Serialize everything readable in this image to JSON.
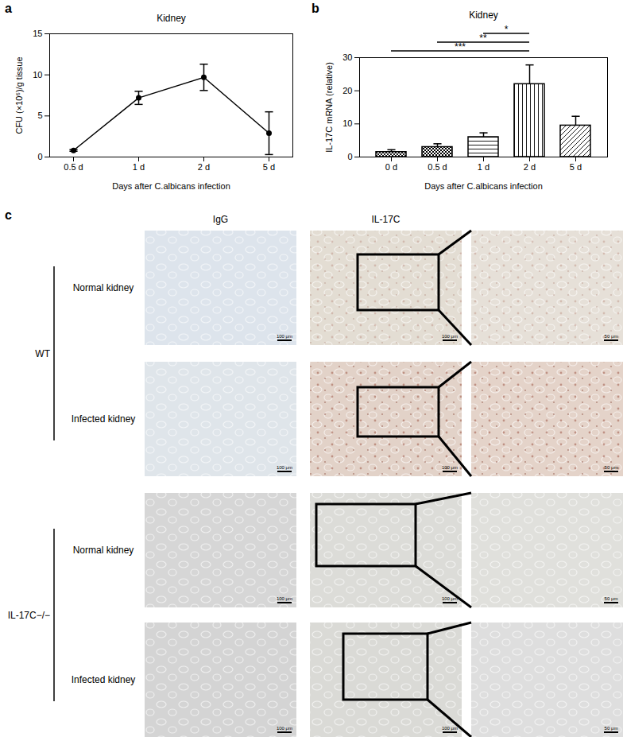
{
  "chart_data": [
    {
      "panel_label": "a",
      "type": "line",
      "title": "Kidney",
      "categories": [
        "0.5 d",
        "1 d",
        "2 d",
        "5 d"
      ],
      "values": [
        0.8,
        7.2,
        9.7,
        2.9
      ],
      "errors": [
        0.1,
        0.8,
        1.6,
        2.6
      ],
      "ylim": [
        0,
        15
      ],
      "yticks": [
        0,
        5,
        10,
        15
      ],
      "xlabel": "Days after C.albicans infection",
      "ylabel": "CFU (×10⁶)/g tissue",
      "color": "#000000",
      "marker": "circle"
    },
    {
      "panel_label": "b",
      "type": "bar",
      "title": "Kidney",
      "categories": [
        "0 d",
        "0.5 d",
        "1 d",
        "2 d",
        "5 d"
      ],
      "values": [
        1.5,
        3.0,
        6.0,
        22.0,
        9.5
      ],
      "errors": [
        0.7,
        1.0,
        1.3,
        5.8,
        2.8
      ],
      "ylim": [
        0,
        30
      ],
      "yticks": [
        0,
        10,
        20,
        30
      ],
      "xlabel": "Days after C.albicans infection",
      "ylabel": "IL-17C mRNA (relative)",
      "color": "#000000",
      "annotations": [
        {
          "from": "0 d",
          "to": "2 d",
          "label": "***"
        },
        {
          "from": "0.5 d",
          "to": "2 d",
          "label": "**"
        },
        {
          "from": "1 d",
          "to": "2 d",
          "label": "*"
        }
      ]
    }
  ],
  "panel_c": {
    "panel_label": "c",
    "columns": [
      "IgG",
      "IL-17C"
    ],
    "groups": [
      {
        "name": "WT",
        "rows": [
          "Normal kidney",
          "Infected kidney"
        ]
      },
      {
        "name": "IL-17C−/−",
        "rows": [
          "Normal kidney",
          "Infected kidney"
        ]
      }
    ],
    "scale_bars": {
      "overview": "100 μm",
      "zoom": "50 μm"
    }
  }
}
